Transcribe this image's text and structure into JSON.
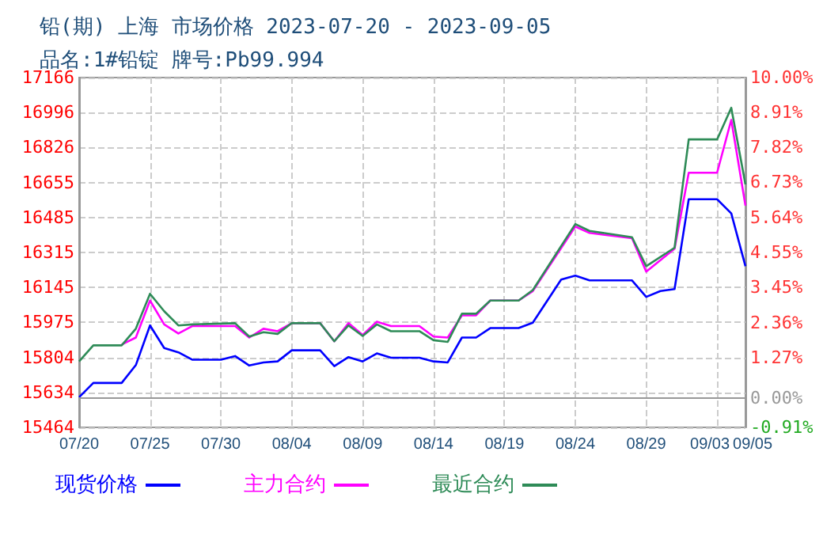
{
  "chart_data": {
    "type": "line",
    "title": "铅(期) 上海 市场价格 2023-07-20 - 2023-09-05",
    "subtitle": "品名:1#铅锭 牌号:Pb99.994",
    "xlim": [
      "--07-20",
      "--09-05"
    ],
    "xticks": [
      {
        "value": "--07-20",
        "label": "07/20"
      },
      {
        "value": "--07-25",
        "label": "07/25"
      },
      {
        "value": "--07-30",
        "label": "07/30"
      },
      {
        "value": "--08-04",
        "label": "08/04"
      },
      {
        "value": "--08-09",
        "label": "08/09"
      },
      {
        "value": "--08-14",
        "label": "08/14"
      },
      {
        "value": "--08-19",
        "label": "08/19"
      },
      {
        "value": "--08-24",
        "label": "08/24"
      },
      {
        "value": "--08-29",
        "label": "08/29"
      },
      {
        "value": "--09-03",
        "label": "09/03"
      },
      {
        "value": "--09-05",
        "label": "09/05"
      }
    ],
    "ylim": [
      15464,
      17166
    ],
    "yticks": [
      15464,
      15634,
      15804,
      15975,
      16145,
      16315,
      16485,
      16655,
      16826,
      16996,
      17166
    ],
    "y2lim": [
      -0.91,
      10.0
    ],
    "y2ticks": [
      {
        "value": -0.91,
        "label": "-0.91%"
      },
      {
        "value": 0,
        "label": "0.00%"
      },
      {
        "value": 1.27,
        "label": "1.27%"
      },
      {
        "value": 2.36,
        "label": "2.36%"
      },
      {
        "value": 3.45,
        "label": "3.45%"
      },
      {
        "value": 4.55,
        "label": "4.55%"
      },
      {
        "value": 5.64,
        "label": "5.64%"
      },
      {
        "value": 6.73,
        "label": "6.73%"
      },
      {
        "value": 7.82,
        "label": "7.82%"
      },
      {
        "value": 8.91,
        "label": "8.91%"
      },
      {
        "value": 10.0,
        "label": "10.00%"
      }
    ],
    "ref_lines": [
      {
        "axis": "y2",
        "value": 0,
        "color": "#999999"
      }
    ],
    "grid": true,
    "legend": "bottom",
    "marker": "none",
    "line_style": "solid",
    "series": [
      {
        "name": "现货价格",
        "color": "#0000ff",
        "x": [
          "--07-20",
          "--07-21",
          "--07-23",
          "--07-24",
          "--07-25",
          "--07-26",
          "--07-27",
          "--07-28",
          "--07-30",
          "--07-31",
          "--08-01",
          "--08-02",
          "--08-03",
          "--08-04",
          "--08-06",
          "--08-07",
          "--08-08",
          "--08-09",
          "--08-10",
          "--08-11",
          "--08-13",
          "--08-14",
          "--08-15",
          "--08-16",
          "--08-17",
          "--08-18",
          "--08-20",
          "--08-21",
          "--08-23",
          "--08-24",
          "--08-25",
          "--08-28",
          "--08-29",
          "--08-30",
          "--08-31",
          "--09-01",
          "--09-03",
          "--09-04",
          "--09-05"
        ],
        "values": [
          15611,
          15680,
          15680,
          15767,
          15960,
          15850,
          15829,
          15793,
          15793,
          15811,
          15765,
          15780,
          15785,
          15839,
          15839,
          15762,
          15806,
          15785,
          15824,
          15803,
          15803,
          15785,
          15780,
          15901,
          15901,
          15947,
          15947,
          15973,
          16183,
          16202,
          16179,
          16179,
          16099,
          16127,
          16137,
          16574,
          16574,
          16505,
          16248
        ]
      },
      {
        "name": "主力合约",
        "color": "#ff00ff",
        "x": [
          "--07-23",
          "--07-24",
          "--07-25",
          "--07-26",
          "--07-27",
          "--07-28",
          "--07-31",
          "--08-01",
          "--08-02",
          "--08-03",
          "--08-04",
          "--08-06",
          "--08-07",
          "--08-08",
          "--08-09",
          "--08-10",
          "--08-11",
          "--08-13",
          "--08-14",
          "--08-15",
          "--08-16",
          "--08-17",
          "--08-18",
          "--08-20",
          "--08-21",
          "--08-24",
          "--08-25",
          "--08-28",
          "--08-29",
          "--08-31",
          "--09-01",
          "--09-03",
          "--09-04",
          "--09-05"
        ],
        "values": [
          15867,
          15901,
          16081,
          15965,
          15921,
          15957,
          15957,
          15901,
          15944,
          15932,
          15971,
          15971,
          15883,
          15971,
          15914,
          15978,
          15957,
          15957,
          15906,
          15901,
          16009,
          16009,
          16081,
          16081,
          16127,
          16441,
          16410,
          16384,
          16222,
          16333,
          16703,
          16703,
          16960,
          16543
        ]
      },
      {
        "name": "最近合约",
        "color": "#2e8b57",
        "x": [
          "--07-20",
          "--07-21",
          "--07-23",
          "--07-24",
          "--07-25",
          "--07-26",
          "--07-27",
          "--07-28",
          "--07-31",
          "--08-01",
          "--08-02",
          "--08-03",
          "--08-04",
          "--08-06",
          "--08-07",
          "--08-08",
          "--08-09",
          "--08-10",
          "--08-11",
          "--08-13",
          "--08-14",
          "--08-15",
          "--08-16",
          "--08-17",
          "--08-18",
          "--08-20",
          "--08-21",
          "--08-24",
          "--08-25",
          "--08-28",
          "--08-29",
          "--08-31",
          "--09-01",
          "--09-03",
          "--09-04",
          "--09-05"
        ],
        "values": [
          15785,
          15863,
          15863,
          15944,
          16114,
          16029,
          15960,
          15965,
          15971,
          15906,
          15927,
          15919,
          15971,
          15971,
          15883,
          15960,
          15909,
          15965,
          15932,
          15932,
          15888,
          15880,
          16017,
          16017,
          16081,
          16081,
          16132,
          16453,
          16420,
          16389,
          16248,
          16338,
          16865,
          16865,
          17019,
          16646
        ]
      }
    ]
  }
}
